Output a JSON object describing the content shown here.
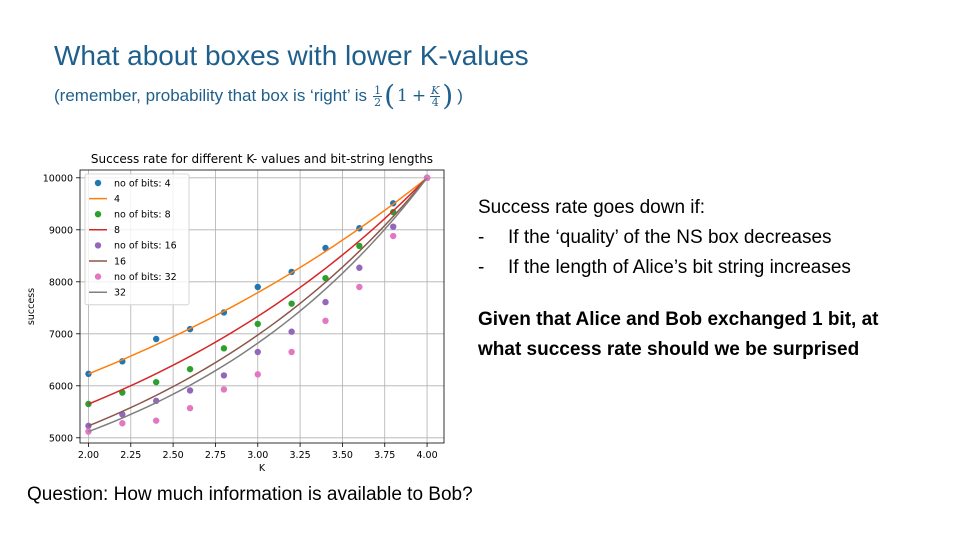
{
  "slide": {
    "title": "What about boxes with lower K-values",
    "subtitle_prefix": "(remember, probability that  box is ‘right’ is",
    "formula": {
      "frac1_num": "1",
      "frac1_den": "2",
      "one": "1",
      "plus": "+",
      "frac2_num": "K",
      "frac2_den": "4"
    },
    "subtitle_suffix": ")",
    "right_heading": "Success rate goes down if:",
    "bullets": [
      "If the ‘quality’ of the NS box decreases",
      "If the length of Alice’s bit string increases"
    ],
    "bullet_dash": "-",
    "bold_line1": "Given that Alice and Bob exchanged 1 bit, at",
    "bold_line2": "what success rate should we be surprised",
    "question": "Question: How much information is available to Bob?"
  },
  "chart_data": {
    "type": "scatter",
    "title": "Success rate for different K- values and bit-string lengths",
    "xlabel": "K",
    "ylabel": "success",
    "xlim": [
      1.95,
      4.1
    ],
    "ylim": [
      4900,
      10150
    ],
    "xticks": [
      "2.00",
      "2.25",
      "2.50",
      "2.75",
      "3.00",
      "3.25",
      "3.50",
      "3.75",
      "4.00"
    ],
    "xtick_values": [
      2.0,
      2.25,
      2.5,
      2.75,
      3.0,
      3.25,
      3.5,
      3.75,
      4.0
    ],
    "yticks": [
      "5000",
      "6000",
      "7000",
      "8000",
      "9000",
      "10000"
    ],
    "ytick_values": [
      5000,
      6000,
      7000,
      8000,
      9000,
      10000
    ],
    "grid": true,
    "legend_position": "top-left",
    "x": [
      2.0,
      2.2,
      2.4,
      2.6,
      2.8,
      3.0,
      3.2,
      3.4,
      3.6,
      3.8,
      4.0
    ],
    "series": [
      {
        "name": "no of bits: 4",
        "kind": "points",
        "color": "#1f77b4",
        "values": [
          6230,
          6470,
          6900,
          7090,
          7410,
          7900,
          8190,
          8650,
          9030,
          9510,
          10000
        ]
      },
      {
        "name": "4",
        "kind": "line",
        "color": "#ff7f0e",
        "bits": 4
      },
      {
        "name": "no of bits: 8",
        "kind": "points",
        "color": "#2ca02c",
        "values": [
          5650,
          5870,
          6070,
          6320,
          6720,
          7190,
          7580,
          8070,
          8690,
          9340,
          10000
        ]
      },
      {
        "name": "8",
        "kind": "line",
        "color": "#d62728",
        "bits": 8
      },
      {
        "name": "no of bits: 16",
        "kind": "points",
        "color": "#9467bd",
        "values": [
          5230,
          5450,
          5710,
          5910,
          6200,
          6650,
          7040,
          7610,
          8270,
          9060,
          10000
        ]
      },
      {
        "name": "16",
        "kind": "line",
        "color": "#8c564b",
        "bits": 16
      },
      {
        "name": "no of bits: 32",
        "kind": "points",
        "color": "#e377c2",
        "values": [
          5120,
          5280,
          5330,
          5570,
          5930,
          6220,
          6650,
          7250,
          7900,
          8880,
          10000
        ]
      },
      {
        "name": "32",
        "kind": "line",
        "color": "#7f7f7f",
        "bits": 32
      }
    ]
  }
}
